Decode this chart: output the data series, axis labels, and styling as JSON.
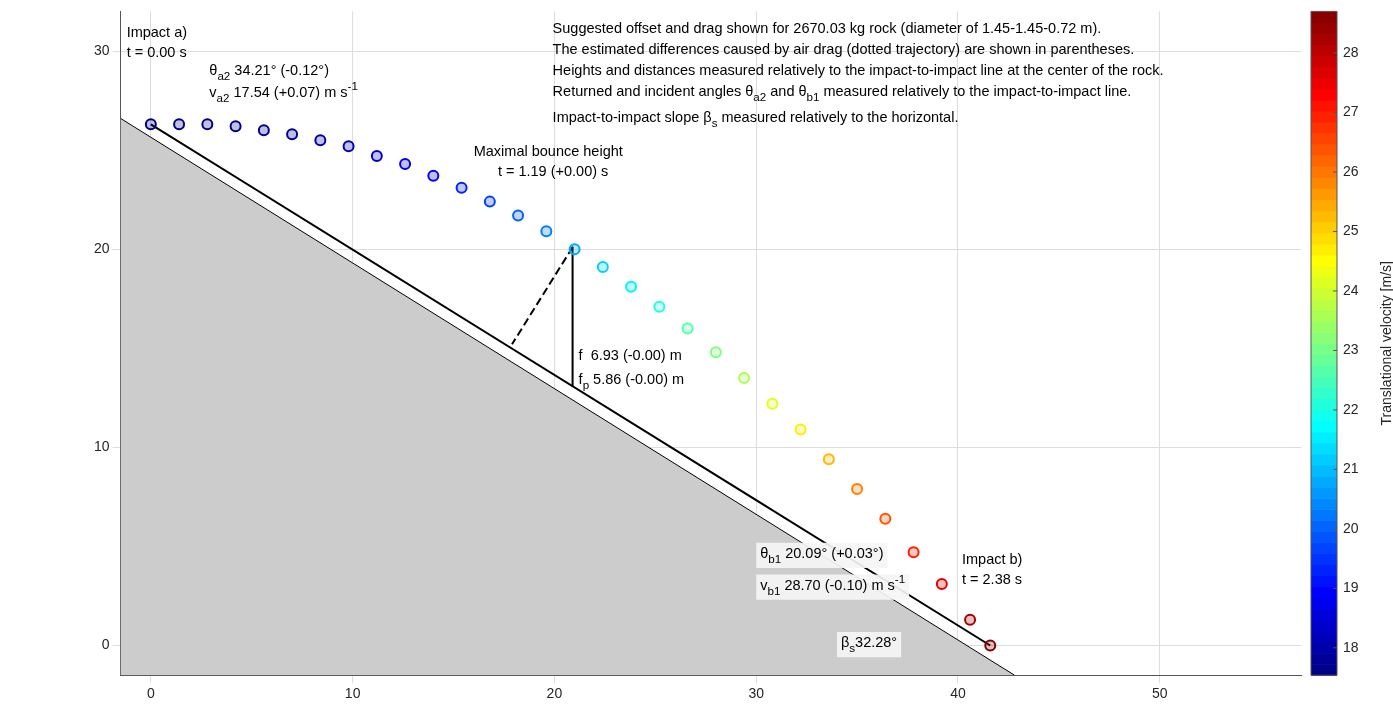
{
  "chart_data": {
    "type": "scatter",
    "xlim": [
      -1.5,
      57
    ],
    "ylim": [
      -1.5,
      32
    ],
    "xticks": [
      0,
      10,
      20,
      30,
      40,
      50
    ],
    "yticks": [
      0,
      10,
      20,
      30
    ],
    "grid": true,
    "clim": [
      17.54,
      28.7
    ],
    "cticks": [
      18,
      19,
      20,
      21,
      22,
      23,
      24,
      25,
      26,
      27,
      28
    ],
    "clabel": "Translational velocity [m/s]",
    "series": [
      {
        "type": "area",
        "color": "#cccccc",
        "x": [
          -1.5,
          42.8
        ],
        "values": [
          26.6,
          -1.5
        ]
      },
      {
        "type": "line",
        "color": "#000000",
        "x": [
          0,
          41.6
        ],
        "values": [
          26.3,
          0
        ]
      },
      {
        "type": "scatter",
        "marker": "circle",
        "x": [
          0,
          1.4,
          2.8,
          4.2,
          5.6,
          7,
          8.4,
          9.8,
          11.2,
          12.6,
          14,
          15.4,
          16.8,
          18.2,
          19.6,
          21,
          22.4,
          23.8,
          25.2,
          26.6,
          28,
          29.4,
          30.8,
          32.2,
          33.6,
          35,
          36.4,
          37.8,
          39.2,
          40.6,
          41.6
        ],
        "values": [
          26.3,
          26.3,
          26.3,
          26.2,
          26,
          25.8,
          25.5,
          25.2,
          24.7,
          24.3,
          23.7,
          23.1,
          22.4,
          21.7,
          20.9,
          20,
          19.1,
          18.1,
          17.1,
          16,
          14.8,
          13.5,
          12.2,
          10.9,
          9.4,
          7.9,
          6.4,
          4.7,
          3.1,
          1.3,
          0
        ],
        "cvalues": [
          17.54,
          17.54,
          17.55,
          17.6,
          17.7,
          17.8,
          18,
          18.2,
          18.4,
          18.7,
          18.9,
          19.3,
          19.6,
          20,
          20.3,
          20.8,
          21.2,
          21.6,
          22.1,
          22.6,
          23.1,
          23.6,
          24.2,
          24.7,
          25.3,
          25.9,
          26.4,
          27,
          27.6,
          28.3,
          28.7
        ],
        "colors": [
          "#000080",
          "#000080",
          "#000080",
          "#000085",
          "#00008e",
          "#000097",
          "#0000aa",
          "#0000bc",
          "#0000ce",
          "#0000ea",
          "#0000fc",
          "#0021ff",
          "#003dff",
          "#0061ff",
          "#007dff",
          "#00aaff",
          "#00cfff",
          "#00f4ff",
          "#22ffdd",
          "#50ffaf",
          "#7eff81",
          "#abff54",
          "#e2ff1d",
          "#ffee00",
          "#ffb700",
          "#ff8000",
          "#ff5300",
          "#ff1c00",
          "#e40000",
          "#a40000",
          "#800000"
        ]
      },
      {
        "type": "line",
        "color": "#000000",
        "x": [
          20.9,
          20.9
        ],
        "values": [
          20.1,
          13.1
        ]
      },
      {
        "type": "line",
        "color": "#000000",
        "line_style": "dashed",
        "x": [
          20.9,
          17.9
        ],
        "values": [
          20.1,
          15.2
        ]
      }
    ],
    "annotations": [
      "Suggested offset and drag shown for 2670.03 kg rock (diameter of 1.45-1.45-0.72 m).",
      "The estimated differences caused by air drag (dotted trajectory) are shown in parentheses.",
      "Heights and distances measured relatively to the impact-to-impact line at the center of the rock.",
      "Returned and incident angles θ$_{a2}$ and θ$_{b1}$ measured relatively to the impact-to-impact line.",
      "Impact-to-impact slope β$_{s}$ measured relatively to the horizontal.",
      "Impact a)",
      "t = 0.00 s",
      "θ$_{a2}$ 34.21° (-0.12°)",
      "v$_{a2}$ 17.54 (+0.07) m s$^{-1}$",
      "Maximal bounce height",
      "t = 1.19 (+0.00) s",
      "f  6.93 (-0.00) m",
      "f$_{p}$ 5.86 (-0.00) m",
      "θ$_{b1}$ 20.09° (+0.03°)",
      "v$_{b1}$ 28.70 (-0.10) m s$^{-1}$",
      "Impact b)",
      "t = 2.38 s",
      "β$_{s}$32.28°"
    ]
  }
}
